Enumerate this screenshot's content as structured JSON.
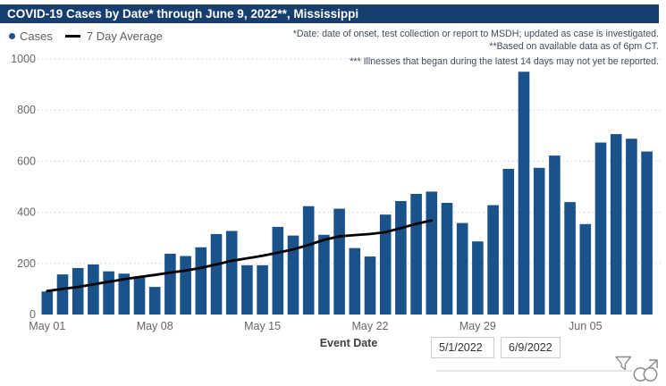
{
  "title": "COVID-19 Cases by Date* through June 9, 2022**, Mississippi",
  "legend": {
    "cases": "Cases",
    "average": "7 Day Average"
  },
  "annotations": [
    "*Date: date of onset, test collection or report to MSDH; updated as case is investigated.",
    "**Based on available data as of 6pm CT.",
    "*** Illnesses that began during the latest 14 days may not yet be reported."
  ],
  "colors": {
    "title_bg": "#173E6D",
    "bar": "#1A538B",
    "avg_line": "#000000",
    "grid": "#CBCBCB",
    "axis_text": "#666666",
    "annotation_text": "#3E4C5E",
    "icon": "#8A8A8A"
  },
  "slicer": {
    "start_date": "5/1/2022",
    "end_date": "6/9/2022"
  },
  "icons": {
    "filter": "filter-icon",
    "focus": "focus-mode-icon"
  },
  "chart_data": {
    "type": "bar",
    "title": "COVID-19 Cases by Date* through June 9, 2022**, Mississippi",
    "xlabel": "Event Date",
    "ylabel": "",
    "ylim": [
      0,
      1000
    ],
    "yticks": [
      0,
      200,
      400,
      600,
      800,
      1000
    ],
    "grid": "horizontal dotted",
    "legend_position": "top-left",
    "categories": [
      "May 01",
      "May 02",
      "May 03",
      "May 04",
      "May 05",
      "May 06",
      "May 07",
      "May 08",
      "May 09",
      "May 10",
      "May 11",
      "May 12",
      "May 13",
      "May 14",
      "May 15",
      "May 16",
      "May 17",
      "May 18",
      "May 19",
      "May 20",
      "May 21",
      "May 22",
      "May 23",
      "May 24",
      "May 25",
      "May 26",
      "May 27",
      "May 28",
      "May 29",
      "May 30",
      "May 31",
      "Jun 01",
      "Jun 02",
      "Jun 03",
      "Jun 04",
      "Jun 05",
      "Jun 06",
      "Jun 07",
      "Jun 08",
      "Jun 09"
    ],
    "x_axis_labeled_ticks": [
      "May 01",
      "May 08",
      "May 15",
      "May 22",
      "May 29",
      "Jun 05"
    ],
    "series": [
      {
        "name": "Cases",
        "type": "bar",
        "values": [
          90,
          157,
          182,
          196,
          169,
          160,
          146,
          108,
          238,
          229,
          263,
          315,
          327,
          193,
          193,
          343,
          309,
          424,
          312,
          414,
          260,
          227,
          391,
          444,
          472,
          481,
          437,
          358,
          286,
          428,
          570,
          950,
          574,
          622,
          440,
          354,
          673,
          706,
          688,
          638
        ]
      },
      {
        "name": "7 Day Average",
        "type": "line",
        "values": [
          92,
          100,
          108,
          118,
          128,
          138,
          147,
          155,
          164,
          172,
          182,
          196,
          210,
          220,
          230,
          242,
          255,
          272,
          292,
          306,
          311,
          315,
          322,
          338,
          355,
          368,
          null,
          null,
          null,
          null,
          null,
          null,
          null,
          null,
          null,
          null,
          null,
          null,
          null,
          null
        ]
      }
    ]
  }
}
